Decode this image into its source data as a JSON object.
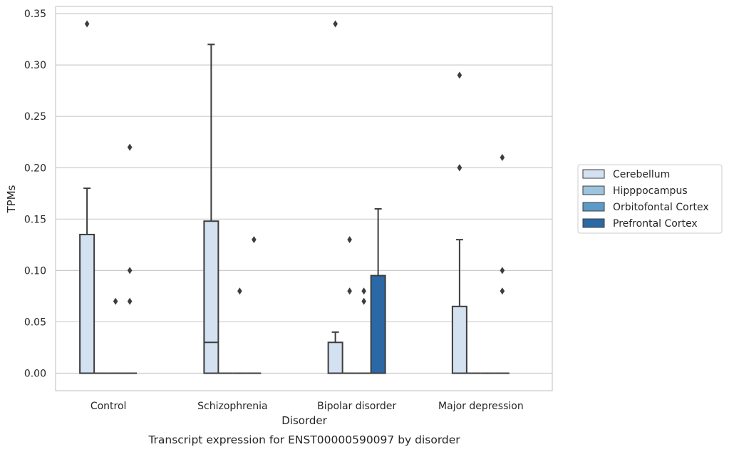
{
  "chart_data": {
    "type": "box",
    "title": "Transcript expression for ENST00000590097 by disorder",
    "xlabel": "Disorder",
    "ylabel": "TPMs",
    "ylim": [
      -0.017,
      0.357
    ],
    "yticks": [
      "0.00",
      "0.05",
      "0.10",
      "0.15",
      "0.20",
      "0.25",
      "0.30",
      "0.35"
    ],
    "grid": true,
    "legend_position": "right",
    "categories": [
      "Control",
      "Schizophrenia",
      "Bipolar disorder",
      "Major depression"
    ],
    "hue": [
      {
        "name": "Cerebellum",
        "color": "#d3e1f0"
      },
      {
        "name": "Hipppocampus",
        "color": "#9dc4dd"
      },
      {
        "name": "Orbitofontal Cortex",
        "color": "#5c9bc8"
      },
      {
        "name": "Prefrontal Cortex",
        "color": "#2b68a6"
      }
    ],
    "boxes": [
      {
        "category": "Control",
        "series": "Cerebellum",
        "q1": 0,
        "median": 0,
        "q3": 0.135,
        "whisker_low": 0,
        "whisker_high": 0.18,
        "outliers": [
          0.34
        ]
      },
      {
        "category": "Control",
        "series": "Hipppocampus",
        "q1": 0,
        "median": 0,
        "q3": 0,
        "whisker_low": 0,
        "whisker_high": 0,
        "outliers": []
      },
      {
        "category": "Control",
        "series": "Orbitofontal Cortex",
        "q1": 0,
        "median": 0,
        "q3": 0,
        "whisker_low": 0,
        "whisker_high": 0,
        "outliers": [
          0.07
        ]
      },
      {
        "category": "Control",
        "series": "Prefrontal Cortex",
        "q1": 0,
        "median": 0,
        "q3": 0,
        "whisker_low": 0,
        "whisker_high": 0,
        "outliers": [
          0.07,
          0.1,
          0.22
        ]
      },
      {
        "category": "Schizophrenia",
        "series": "Cerebellum",
        "q1": 0,
        "median": 0.03,
        "q3": 0.148,
        "whisker_low": 0,
        "whisker_high": 0.32,
        "outliers": []
      },
      {
        "category": "Schizophrenia",
        "series": "Hipppocampus",
        "q1": 0,
        "median": 0,
        "q3": 0,
        "whisker_low": 0,
        "whisker_high": 0,
        "outliers": []
      },
      {
        "category": "Schizophrenia",
        "series": "Orbitofontal Cortex",
        "q1": 0,
        "median": 0,
        "q3": 0,
        "whisker_low": 0,
        "whisker_high": 0,
        "outliers": [
          0.08
        ]
      },
      {
        "category": "Schizophrenia",
        "series": "Prefrontal Cortex",
        "q1": 0,
        "median": 0,
        "q3": 0,
        "whisker_low": 0,
        "whisker_high": 0,
        "outliers": [
          0.13
        ]
      },
      {
        "category": "Bipolar disorder",
        "series": "Cerebellum",
        "q1": 0,
        "median": 0,
        "q3": 0.03,
        "whisker_low": 0,
        "whisker_high": 0.04,
        "outliers": [
          0.34
        ]
      },
      {
        "category": "Bipolar disorder",
        "series": "Hipppocampus",
        "q1": 0,
        "median": 0,
        "q3": 0,
        "whisker_low": 0,
        "whisker_high": 0,
        "outliers": [
          0.08,
          0.13
        ]
      },
      {
        "category": "Bipolar disorder",
        "series": "Orbitofontal Cortex",
        "q1": 0,
        "median": 0,
        "q3": 0,
        "whisker_low": 0,
        "whisker_high": 0,
        "outliers": [
          0.07,
          0.08
        ]
      },
      {
        "category": "Bipolar disorder",
        "series": "Prefrontal Cortex",
        "q1": 0,
        "median": 0,
        "q3": 0.095,
        "whisker_low": 0,
        "whisker_high": 0.16,
        "outliers": []
      },
      {
        "category": "Major depression",
        "series": "Cerebellum",
        "q1": 0,
        "median": 0,
        "q3": 0.065,
        "whisker_low": 0,
        "whisker_high": 0.13,
        "outliers": [
          0.2,
          0.2,
          0.29
        ]
      },
      {
        "category": "Major depression",
        "series": "Hipppocampus",
        "q1": 0,
        "median": 0,
        "q3": 0,
        "whisker_low": 0,
        "whisker_high": 0,
        "outliers": []
      },
      {
        "category": "Major depression",
        "series": "Orbitofontal Cortex",
        "q1": 0,
        "median": 0,
        "q3": 0,
        "whisker_low": 0,
        "whisker_high": 0,
        "outliers": []
      },
      {
        "category": "Major depression",
        "series": "Prefrontal Cortex",
        "q1": 0,
        "median": 0,
        "q3": 0,
        "whisker_low": 0,
        "whisker_high": 0,
        "outliers": [
          0.08,
          0.1,
          0.21
        ]
      }
    ]
  }
}
